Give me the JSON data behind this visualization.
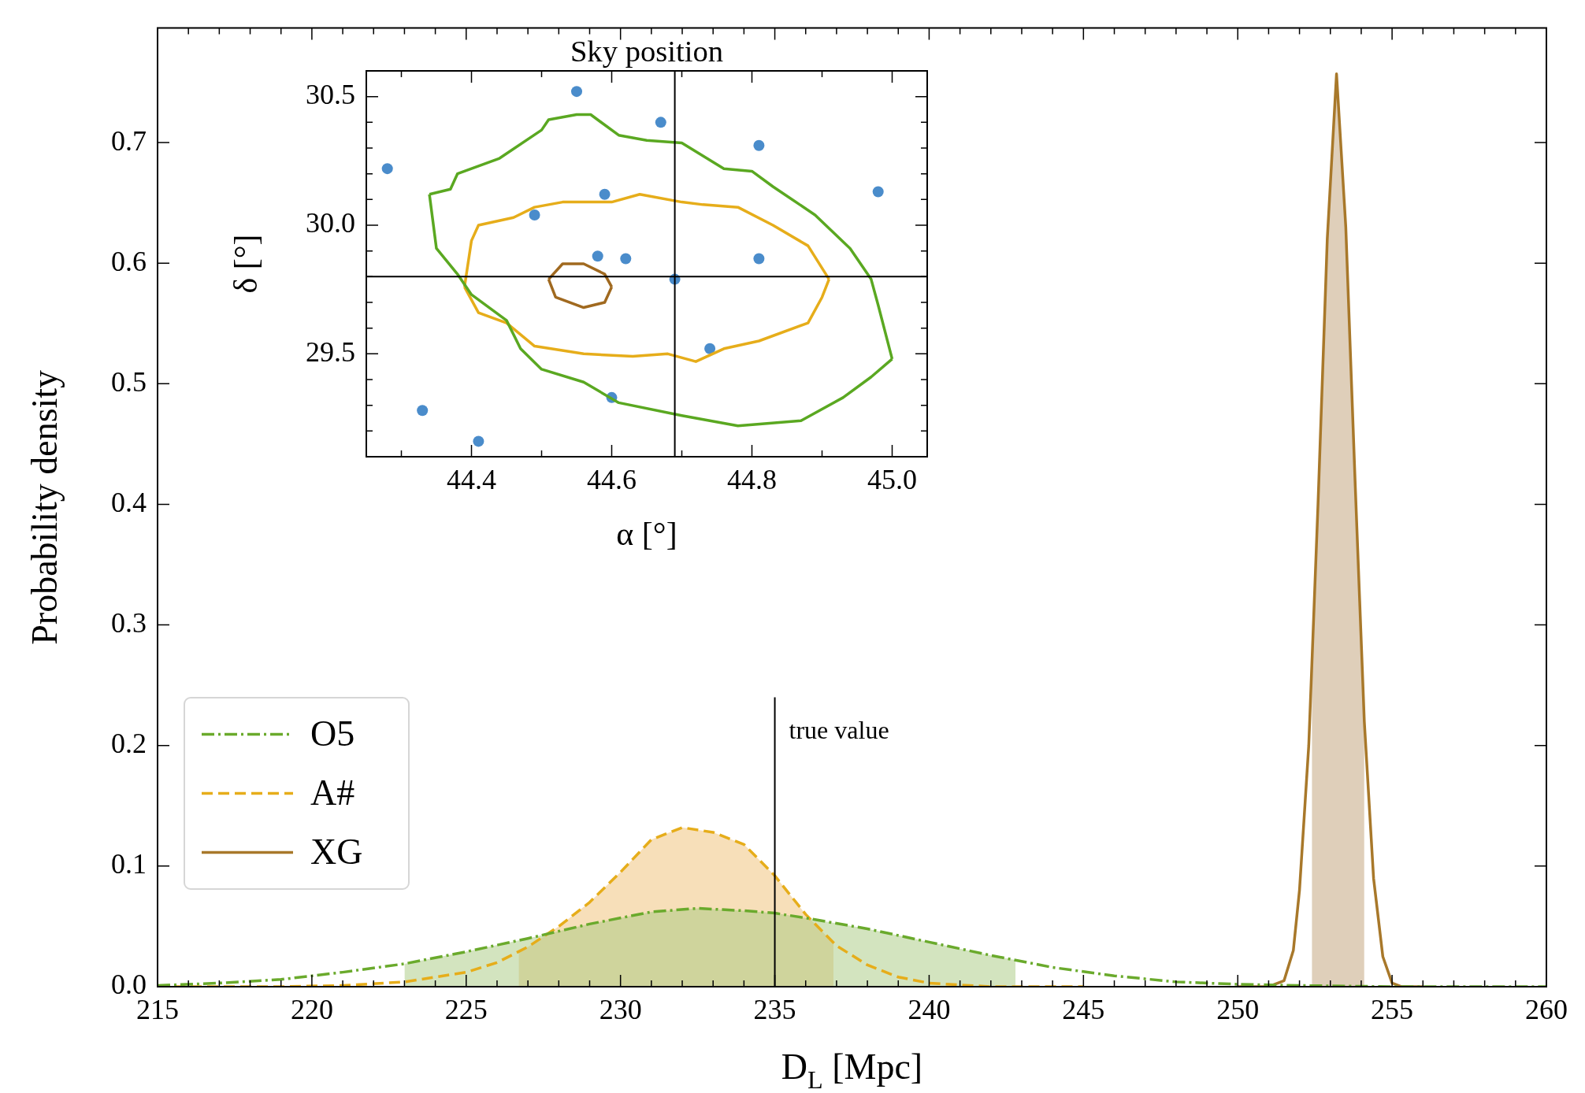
{
  "chart_data": [
    {
      "type": "line",
      "xlabel": "D$_{L}$ [Mpc]",
      "ylabel": "Probability density",
      "legend": "bottom left",
      "grid": false,
      "xlim": [
        215,
        260
      ],
      "ylim": [
        0,
        0.795
      ],
      "xticks": [
        215,
        {
          "value": 216,
          "label": null
        },
        {
          "value": 217,
          "label": null
        },
        {
          "value": 218,
          "label": null
        },
        {
          "value": 219,
          "label": null
        },
        220,
        {
          "value": 221,
          "label": null
        },
        {
          "value": 222,
          "label": null
        },
        {
          "value": 223,
          "label": null
        },
        {
          "value": 224,
          "label": null
        },
        225,
        {
          "value": 226,
          "label": null
        },
        {
          "value": 227,
          "label": null
        },
        {
          "value": 228,
          "label": null
        },
        {
          "value": 229,
          "label": null
        },
        230,
        {
          "value": 231,
          "label": null
        },
        {
          "value": 232,
          "label": null
        },
        {
          "value": 233,
          "label": null
        },
        {
          "value": 234,
          "label": null
        },
        235,
        {
          "value": 236,
          "label": null
        },
        {
          "value": 237,
          "label": null
        },
        {
          "value": 238,
          "label": null
        },
        {
          "value": 239,
          "label": null
        },
        240,
        {
          "value": 241,
          "label": null
        },
        {
          "value": 242,
          "label": null
        },
        {
          "value": 243,
          "label": null
        },
        {
          "value": 244,
          "label": null
        },
        245,
        {
          "value": 246,
          "label": null
        },
        {
          "value": 247,
          "label": null
        },
        {
          "value": 248,
          "label": null
        },
        {
          "value": 249,
          "label": null
        },
        250,
        {
          "value": 251,
          "label": null
        },
        {
          "value": 252,
          "label": null
        },
        {
          "value": 253,
          "label": null
        },
        {
          "value": 254,
          "label": null
        },
        255,
        {
          "value": 256,
          "label": null
        },
        {
          "value": 257,
          "label": null
        },
        {
          "value": 258,
          "label": null
        },
        {
          "value": 259,
          "label": null
        },
        260
      ],
      "yticks": [
        {
          "value": 0,
          "label": "0.0"
        },
        0.1,
        0.2,
        0.3,
        0.4,
        0.5,
        0.6,
        0.7
      ],
      "series": [
        {
          "type": "area",
          "color": "#a7c97f",
          "x": [
            223,
            225,
            227,
            229,
            231,
            232.5,
            234,
            235,
            236,
            238,
            240,
            242,
            242.8
          ],
          "values": [
            0.019,
            0.029,
            0.04,
            0.052,
            0.062,
            0.065,
            0.063,
            0.061,
            0.057,
            0.048,
            0.037,
            0.026,
            0.022
          ]
        },
        {
          "type": "area",
          "color": "#efbf73",
          "x": [
            226.7,
            227,
            228,
            229,
            230,
            231,
            232,
            233,
            234,
            235,
            236,
            236.9
          ],
          "values": [
            0.029,
            0.033,
            0.05,
            0.07,
            0.095,
            0.122,
            0.132,
            0.128,
            0.118,
            0.092,
            0.06,
            0.036
          ]
        },
        {
          "type": "area",
          "color": "#c0a075",
          "x": [
            252.4,
            252.6,
            252.9,
            253.2,
            253.5,
            253.8,
            254.1
          ],
          "values": [
            0.27,
            0.4,
            0.62,
            0.757,
            0.63,
            0.42,
            0.22
          ]
        },
        {
          "type": "line",
          "name": "O5",
          "color": "#6aaa2c",
          "line_style": "dashdot",
          "x": [
            215,
            217,
            219,
            221,
            223,
            225,
            227,
            229,
            231,
            232.5,
            234,
            235,
            236,
            238,
            240,
            242,
            244,
            246,
            248,
            250,
            252,
            255,
            260
          ],
          "values": [
            0.001,
            0.003,
            0.006,
            0.012,
            0.019,
            0.029,
            0.04,
            0.052,
            0.062,
            0.065,
            0.063,
            0.061,
            0.057,
            0.048,
            0.037,
            0.026,
            0.016,
            0.009,
            0.004,
            0.002,
            0.001,
            0,
            0
          ]
        },
        {
          "type": "line",
          "name": "A#",
          "color": "#e6ad1a",
          "line_style": "dashed",
          "x": [
            215,
            219,
            221,
            223,
            225,
            226,
            227,
            228,
            229,
            230,
            231,
            232,
            233,
            234,
            235,
            236,
            237,
            238,
            239,
            240,
            242,
            245
          ],
          "values": [
            0,
            0,
            0.001,
            0.004,
            0.012,
            0.02,
            0.033,
            0.05,
            0.07,
            0.095,
            0.122,
            0.132,
            0.128,
            0.118,
            0.092,
            0.06,
            0.034,
            0.018,
            0.008,
            0.003,
            0,
            0
          ]
        },
        {
          "type": "line",
          "name": "XG",
          "color": "#a8782a",
          "line_style": "solid",
          "x": [
            250,
            251,
            251.5,
            251.8,
            252,
            252.3,
            252.6,
            252.9,
            253.2,
            253.5,
            253.8,
            254.1,
            254.4,
            254.7,
            255,
            255.3,
            256
          ],
          "values": [
            0,
            0,
            0.005,
            0.03,
            0.08,
            0.2,
            0.4,
            0.62,
            0.757,
            0.63,
            0.42,
            0.22,
            0.09,
            0.025,
            0.003,
            0,
            0
          ]
        }
      ],
      "ref_lines": [
        {
          "axis": "x",
          "value": 235
        }
      ],
      "annotations": [
        {
          "text": "true value",
          "x": 235,
          "y": 0.24
        }
      ]
    },
    {
      "type": "line",
      "title": "Sky position",
      "xlabel": "α [°]",
      "ylabel": "δ [°]",
      "grid": false,
      "xlim": [
        44.25,
        45.05
      ],
      "ylim": [
        29.1,
        30.6
      ],
      "xticks": [
        {
          "value": 44.3,
          "label": null
        },
        44.4,
        {
          "value": 44.5,
          "label": null
        },
        44.6,
        {
          "value": 44.7,
          "label": null
        },
        44.8,
        {
          "value": 44.9,
          "label": null
        },
        {
          "value": 45,
          "label": "45.0"
        }
      ],
      "yticks": [
        {
          "value": 29.2,
          "label": null
        },
        {
          "value": 29.3,
          "label": null
        },
        {
          "value": 29.4,
          "label": null
        },
        29.5,
        {
          "value": 29.6,
          "label": null
        },
        {
          "value": 29.7,
          "label": null
        },
        {
          "value": 29.8,
          "label": null
        },
        {
          "value": 29.9,
          "label": null
        },
        {
          "value": 30,
          "label": "30.0"
        },
        {
          "value": 30.1,
          "label": null
        },
        {
          "value": 30.2,
          "label": null
        },
        {
          "value": 30.3,
          "label": null
        },
        {
          "value": 30.4,
          "label": null
        },
        30.5
      ],
      "series": [
        {
          "type": "scatter",
          "color": "#4a8ccb",
          "marker": "circle",
          "x": [
            44.55,
            44.67,
            44.81,
            44.28,
            44.98,
            44.59,
            44.49,
            44.58,
            44.62,
            44.81,
            44.69,
            44.74,
            44.6,
            44.33,
            44.41
          ],
          "values": [
            30.52,
            30.4,
            30.31,
            30.22,
            30.13,
            30.12,
            30.04,
            29.88,
            29.87,
            29.87,
            29.79,
            29.52,
            29.33,
            29.28,
            29.16
          ]
        },
        {
          "type": "line",
          "color": "#5aa821",
          "line_style": "solid",
          "x": [
            44.34,
            44.35,
            44.38,
            44.4,
            44.45,
            44.47,
            44.5,
            44.56,
            44.61,
            44.7,
            44.78,
            44.87,
            44.93,
            44.97,
            45
          ],
          "values": [
            30.12,
            29.91,
            29.81,
            29.73,
            29.63,
            29.52,
            29.44,
            29.39,
            29.31,
            29.26,
            29.22,
            29.24,
            29.33,
            29.41,
            29.48
          ]
        },
        {
          "type": "line",
          "color": "#5aa821",
          "line_style": "solid",
          "x": [
            44.34,
            44.37,
            44.38,
            44.44,
            44.5,
            44.51,
            44.55,
            44.57,
            44.61,
            44.65,
            44.7,
            44.76,
            44.8,
            44.83,
            44.89,
            44.94,
            44.97,
            44.98,
            45
          ],
          "values": [
            30.12,
            30.14,
            30.2,
            30.26,
            30.37,
            30.41,
            30.43,
            30.43,
            30.35,
            30.33,
            30.32,
            30.22,
            30.21,
            30.15,
            30.04,
            29.91,
            29.79,
            29.69,
            29.48
          ]
        },
        {
          "type": "line",
          "color": "#e6ad1a",
          "line_style": "solid",
          "x": [
            44.39,
            44.41,
            44.45,
            44.49,
            44.56,
            44.63,
            44.68,
            44.72,
            44.76,
            44.81,
            44.88,
            44.9,
            44.91
          ],
          "values": [
            29.76,
            29.66,
            29.62,
            29.53,
            29.5,
            29.49,
            29.5,
            29.47,
            29.52,
            29.55,
            29.62,
            29.72,
            29.79
          ]
        },
        {
          "type": "line",
          "color": "#e6ad1a",
          "line_style": "solid",
          "x": [
            44.39,
            44.4,
            44.41,
            44.46,
            44.49,
            44.53,
            44.6,
            44.64,
            44.7,
            44.73,
            44.78,
            44.83,
            44.88,
            44.91
          ],
          "values": [
            29.76,
            29.94,
            30,
            30.03,
            30.07,
            30.09,
            30.09,
            30.12,
            30.09,
            30.08,
            30.07,
            30,
            29.92,
            29.79
          ]
        },
        {
          "type": "line",
          "color": "#a0691f",
          "line_style": "solid",
          "x": [
            44.51,
            44.52,
            44.56,
            44.59,
            44.6
          ],
          "values": [
            29.79,
            29.72,
            29.68,
            29.7,
            29.76
          ]
        },
        {
          "type": "line",
          "color": "#a0691f",
          "line_style": "solid",
          "x": [
            44.51,
            44.53,
            44.56,
            44.59,
            44.6
          ],
          "values": [
            29.79,
            29.85,
            29.85,
            29.81,
            29.76
          ]
        }
      ],
      "ref_lines": [
        {
          "axis": "x",
          "value": 44.69
        },
        {
          "axis": "y",
          "value": 29.8
        }
      ]
    }
  ]
}
